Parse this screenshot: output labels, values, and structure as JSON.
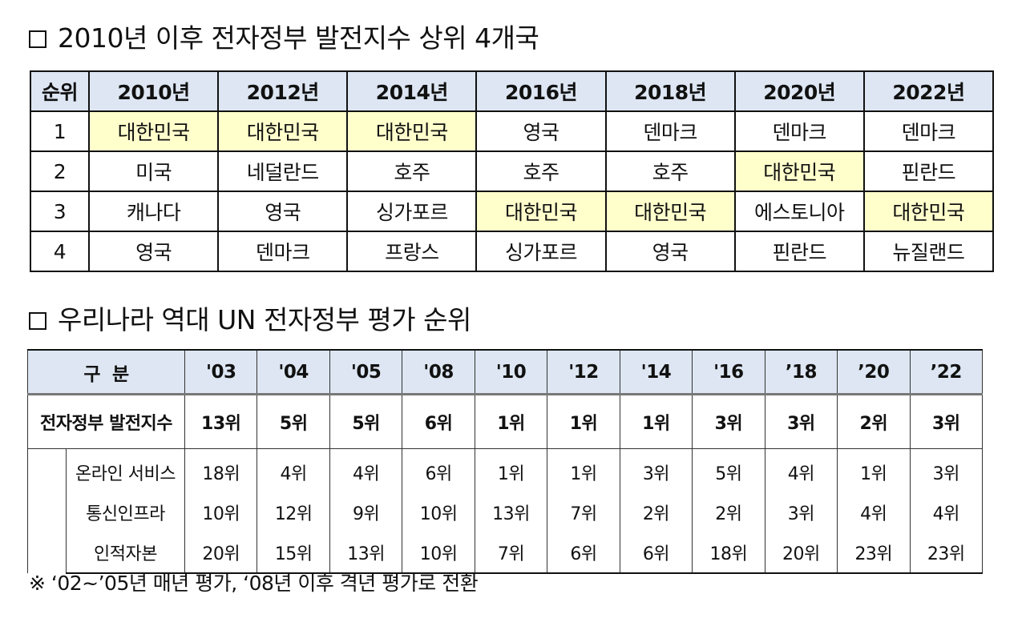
{
  "section1": {
    "marker": "",
    "title": "2010년 이후 전자정부 발전지수 상위 4개국",
    "header_rank": "순위",
    "years": [
      "2010년",
      "2012년",
      "2014년",
      "2016년",
      "2018년",
      "2020년",
      "2022년"
    ],
    "rows": [
      {
        "rank": "1",
        "cells": [
          "대한민국",
          "대한민국",
          "대한민국",
          "영국",
          "덴마크",
          "덴마크",
          "덴마크"
        ],
        "highlight": [
          true,
          true,
          true,
          false,
          false,
          false,
          false
        ]
      },
      {
        "rank": "2",
        "cells": [
          "미국",
          "네덜란드",
          "호주",
          "호주",
          "호주",
          "대한민국",
          "핀란드"
        ],
        "highlight": [
          false,
          false,
          false,
          false,
          false,
          true,
          false
        ]
      },
      {
        "rank": "3",
        "cells": [
          "캐나다",
          "영국",
          "싱가포르",
          "대한민국",
          "대한민국",
          "에스토니아",
          "대한민국"
        ],
        "highlight": [
          false,
          false,
          false,
          true,
          true,
          false,
          true
        ]
      },
      {
        "rank": "4",
        "cells": [
          "영국",
          "덴마크",
          "프랑스",
          "싱가포르",
          "영국",
          "핀란드",
          "뉴질랜드"
        ],
        "highlight": [
          false,
          false,
          false,
          false,
          false,
          false,
          false
        ]
      }
    ],
    "highlight_color": "#ffffcc",
    "header_color": "#dde6f2"
  },
  "section2": {
    "title": "우리나라 역대 UN 전자정부 평가 순위",
    "header_label": "구  분",
    "years": [
      "'03",
      "'04",
      "'05",
      "'08",
      "'10",
      "'12",
      "'14",
      "'16",
      "’18",
      "’20",
      "’22"
    ],
    "main_row": {
      "label": "전자정부 발전지수",
      "values": [
        "13위",
        "5위",
        "5위",
        "6위",
        "1위",
        "1위",
        "1위",
        "3위",
        "3위",
        "2위",
        "3위"
      ]
    },
    "sub_rows": [
      {
        "label": "온라인 서비스",
        "values": [
          "18위",
          "4위",
          "4위",
          "6위",
          "1위",
          "1위",
          "3위",
          "5위",
          "4위",
          "1위",
          "3위"
        ]
      },
      {
        "label": "통신인프라",
        "values": [
          "10위",
          "12위",
          "9위",
          "10위",
          "13위",
          "7위",
          "2위",
          "2위",
          "3위",
          "4위",
          "4위"
        ]
      },
      {
        "label": "인적자본",
        "values": [
          "20위",
          "15위",
          "13위",
          "10위",
          "7위",
          "6위",
          "6위",
          "18위",
          "20위",
          "23위",
          "23위"
        ]
      }
    ]
  },
  "note": "※ ‘02~’05년 매년 평가, ‘08년 이후 격년 평가로 전환"
}
